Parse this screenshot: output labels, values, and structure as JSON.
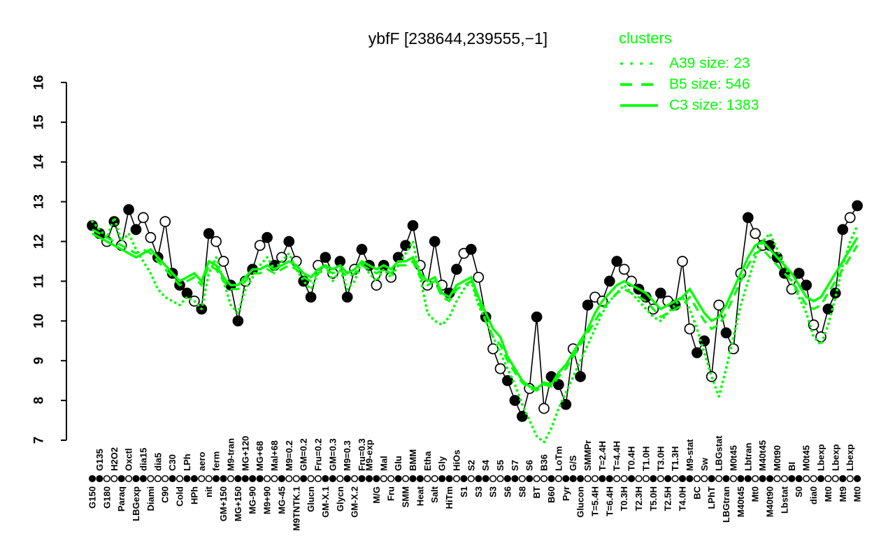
{
  "chart_data": {
    "type": "line",
    "title": "ybfF [238644,239555,−1]",
    "xlabel": "",
    "ylabel": "",
    "ylim": [
      7,
      16
    ],
    "yticks": [
      7,
      8,
      9,
      10,
      11,
      12,
      13,
      14,
      15,
      16
    ],
    "grid": false,
    "colors": {
      "cluster": "#00FF00",
      "series_line": "#000000",
      "open_fill": "#ffffff",
      "text": "#000000"
    },
    "legend": {
      "title": "clusters",
      "position": "top-right",
      "entries": [
        {
          "label": "A39 size: 23",
          "style": "dotted"
        },
        {
          "label": "B5 size: 546",
          "style": "dashed"
        },
        {
          "label": "C3 size: 1383",
          "style": "solid"
        }
      ]
    },
    "conditions": [
      {
        "l": "G150",
        "p": "b"
      },
      {
        "l": "G135",
        "p": "t"
      },
      {
        "l": "G180",
        "p": "b"
      },
      {
        "l": "H2O2",
        "p": "t"
      },
      {
        "l": "Paraq",
        "p": "b"
      },
      {
        "l": "Oxctl",
        "p": "t"
      },
      {
        "l": "LBGexp",
        "p": "b"
      },
      {
        "l": "dia15",
        "p": "t"
      },
      {
        "l": "Diami",
        "p": "b"
      },
      {
        "l": "dia5",
        "p": "t"
      },
      {
        "l": "C90",
        "p": "b"
      },
      {
        "l": "C30",
        "p": "t"
      },
      {
        "l": "Cold",
        "p": "b"
      },
      {
        "l": "LPh",
        "p": "t"
      },
      {
        "l": "HPh",
        "p": "b"
      },
      {
        "l": "aero",
        "p": "t"
      },
      {
        "l": "nit",
        "p": "b"
      },
      {
        "l": "ferm",
        "p": "t"
      },
      {
        "l": "GM+150",
        "p": "b"
      },
      {
        "l": "M9-tran",
        "p": "t"
      },
      {
        "l": "MG+150",
        "p": "b"
      },
      {
        "l": "MG+120",
        "p": "t"
      },
      {
        "l": "MG-90",
        "p": "b"
      },
      {
        "l": "MG+68",
        "p": "t"
      },
      {
        "l": "M9+90",
        "p": "b"
      },
      {
        "l": "Mal+68",
        "p": "t"
      },
      {
        "l": "MG-45",
        "p": "b"
      },
      {
        "l": "M9=0.2",
        "p": "t"
      },
      {
        "l": "M9TNTK.1",
        "p": "b"
      },
      {
        "l": "GM=0.2",
        "p": "t"
      },
      {
        "l": "Glucn",
        "p": "b"
      },
      {
        "l": "Fru=0.2",
        "p": "t"
      },
      {
        "l": "GM-X.1",
        "p": "b"
      },
      {
        "l": "GM=0.3",
        "p": "t"
      },
      {
        "l": "Glycn",
        "p": "b"
      },
      {
        "l": "M9=0.3",
        "p": "t"
      },
      {
        "l": "GM-X.2",
        "p": "b"
      },
      {
        "l": "Fru=0.3",
        "p": "t"
      },
      {
        "l": "M9-exp",
        "p": "t"
      },
      {
        "l": "M/G",
        "p": "b"
      },
      {
        "l": "Mal",
        "p": "t"
      },
      {
        "l": "Fru",
        "p": "b"
      },
      {
        "l": "Glu",
        "p": "t"
      },
      {
        "l": "SMM",
        "p": "b"
      },
      {
        "l": "BMM",
        "p": "t"
      },
      {
        "l": "Heat",
        "p": "b"
      },
      {
        "l": "Etha",
        "p": "t"
      },
      {
        "l": "Salt",
        "p": "b"
      },
      {
        "l": "Gly",
        "p": "t"
      },
      {
        "l": "HiTm",
        "p": "b"
      },
      {
        "l": "HiOs",
        "p": "t"
      },
      {
        "l": "S1",
        "p": "b"
      },
      {
        "l": "S2",
        "p": "t"
      },
      {
        "l": "S3",
        "p": "b"
      },
      {
        "l": "S4",
        "p": "t"
      },
      {
        "l": "S3",
        "p": "b"
      },
      {
        "l": "S5",
        "p": "t"
      },
      {
        "l": "S6",
        "p": "b"
      },
      {
        "l": "S7",
        "p": "t"
      },
      {
        "l": "S8",
        "p": "b"
      },
      {
        "l": "S6",
        "p": "t"
      },
      {
        "l": "BT",
        "p": "b"
      },
      {
        "l": "B36",
        "p": "t"
      },
      {
        "l": "B60",
        "p": "b"
      },
      {
        "l": "LoTm",
        "p": "t"
      },
      {
        "l": "Pyr",
        "p": "b"
      },
      {
        "l": "G/S",
        "p": "t"
      },
      {
        "l": "Glucon",
        "p": "b"
      },
      {
        "l": "SMMPr",
        "p": "t"
      },
      {
        "l": "T=5.4H",
        "p": "b"
      },
      {
        "l": "T=2.4H",
        "p": "t"
      },
      {
        "l": "T=6.4H",
        "p": "b"
      },
      {
        "l": "T=4.4H",
        "p": "t"
      },
      {
        "l": "T0.3H",
        "p": "b"
      },
      {
        "l": "T0.4H",
        "p": "t"
      },
      {
        "l": "T2.3H",
        "p": "b"
      },
      {
        "l": "T1.0H",
        "p": "t"
      },
      {
        "l": "T5.0H",
        "p": "b"
      },
      {
        "l": "T3.0H",
        "p": "t"
      },
      {
        "l": "T2.5H",
        "p": "b"
      },
      {
        "l": "T1.3H",
        "p": "t"
      },
      {
        "l": "T4.0H",
        "p": "b"
      },
      {
        "l": "M9-stat",
        "p": "t"
      },
      {
        "l": "BC",
        "p": "b"
      },
      {
        "l": "Sw",
        "p": "t"
      },
      {
        "l": "LPhT",
        "p": "b"
      },
      {
        "l": "LBGstat",
        "p": "t"
      },
      {
        "l": "LBGtran",
        "p": "b"
      },
      {
        "l": "M0t45",
        "p": "t"
      },
      {
        "l": "M40t45",
        "p": "b"
      },
      {
        "l": "Lbtran",
        "p": "t"
      },
      {
        "l": "Mt0",
        "p": "b"
      },
      {
        "l": "M40t45",
        "p": "t"
      },
      {
        "l": "M40t90",
        "p": "b"
      },
      {
        "l": "M0t90",
        "p": "t"
      },
      {
        "l": "Lbstat",
        "p": "b"
      },
      {
        "l": "BI",
        "p": "t"
      },
      {
        "l": "S0",
        "p": "b"
      },
      {
        "l": "M0t45",
        "p": "t"
      },
      {
        "l": "dia0",
        "p": "b"
      },
      {
        "l": "Lbexp",
        "p": "t"
      },
      {
        "l": "Mt0",
        "p": "b"
      },
      {
        "l": "Lbexp",
        "p": "t"
      },
      {
        "l": "Mt9",
        "p": "b"
      },
      {
        "l": "Lbexp",
        "p": "t"
      },
      {
        "l": "Mt0",
        "p": "b"
      }
    ],
    "gene_points": {
      "values": [
        12.4,
        12.2,
        12.0,
        12.5,
        11.9,
        12.8,
        12.3,
        12.6,
        12.1,
        11.6,
        12.5,
        11.2,
        10.9,
        10.7,
        10.5,
        10.3,
        12.2,
        12.0,
        11.5,
        10.9,
        10.0,
        11.0,
        11.3,
        11.9,
        12.1,
        11.4,
        11.6,
        12.0,
        11.5,
        11.0,
        10.6,
        11.4,
        11.6,
        11.2,
        11.5,
        10.6,
        11.3,
        11.8,
        11.4,
        10.9,
        11.4,
        11.1,
        11.6,
        11.9,
        12.4,
        11.4,
        10.9,
        12.0,
        10.9,
        10.7,
        11.3,
        11.7,
        11.8,
        11.1,
        10.1,
        9.3,
        8.8,
        8.5,
        8.0,
        7.6,
        8.3,
        10.1,
        7.8,
        8.6,
        8.4,
        7.9,
        9.3,
        8.6,
        10.4,
        10.6,
        10.5,
        11.0,
        11.5,
        11.3,
        11.0,
        10.8,
        10.6,
        10.3,
        10.7,
        10.5,
        10.4,
        11.5,
        9.8,
        9.2,
        9.5,
        8.6,
        10.4,
        9.7,
        9.3,
        11.2,
        12.6,
        12.2,
        11.9,
        11.9,
        11.6,
        11.2,
        10.8,
        11.2,
        10.9,
        9.9,
        9.6,
        10.3,
        10.7,
        12.3,
        12.6,
        12.9
      ],
      "fills": "ffofoffoofofffoffooffofoffofoffofoffoffofofffoofoffofofoofffofofffoffooffooffofofooffoofoofoofffoffoofffof"
    },
    "axis_markers": "ffoofoffooofoffooffoffffoofoofooffofofffoofoffooffofoffooffofoofofffooffoofoofofoffoofofoffoffooffoofoofof",
    "clusters": {
      "A39": {
        "style": "dotted",
        "size": 23,
        "values": [
          12.5,
          12.3,
          12.1,
          12.6,
          12.0,
          12.2,
          11.8,
          11.5,
          11.2,
          10.8,
          10.6,
          10.5,
          10.4,
          10.6,
          10.5,
          10.3,
          11.2,
          11.6,
          11.0,
          10.4,
          10.2,
          10.8,
          11.1,
          11.4,
          11.6,
          11.3,
          11.5,
          11.7,
          11.3,
          11.0,
          10.8,
          11.2,
          11.4,
          11.0,
          11.3,
          10.8,
          11.0,
          11.5,
          11.2,
          11.0,
          11.3,
          11.1,
          11.4,
          11.7,
          12.0,
          11.1,
          10.2,
          10.0,
          9.9,
          10.1,
          10.5,
          10.8,
          11.0,
          10.4,
          10.0,
          9.6,
          9.2,
          8.8,
          8.4,
          7.9,
          7.5,
          7.1,
          6.95,
          7.3,
          7.8,
          8.2,
          8.6,
          9.0,
          9.4,
          9.8,
          10.2,
          10.5,
          10.7,
          10.9,
          10.7,
          10.5,
          10.3,
          10.1,
          10.0,
          10.2,
          10.4,
          10.6,
          10.3,
          9.8,
          9.2,
          8.6,
          8.1,
          8.8,
          9.6,
          10.4,
          11.0,
          11.6,
          12.0,
          12.2,
          11.8,
          11.4,
          11.0,
          10.6,
          10.2,
          9.6,
          9.4,
          9.9,
          10.6,
          11.4,
          12.0,
          12.4
        ]
      },
      "B5": {
        "style": "dashed",
        "size": 546,
        "values": [
          12.3,
          12.2,
          12.1,
          12.0,
          11.9,
          11.8,
          11.7,
          11.8,
          11.7,
          11.5,
          11.3,
          11.1,
          10.9,
          11.0,
          11.1,
          10.9,
          11.4,
          11.3,
          11.0,
          10.8,
          10.8,
          11.0,
          11.2,
          11.2,
          11.3,
          11.2,
          11.3,
          11.4,
          11.3,
          11.1,
          11.0,
          11.2,
          11.3,
          11.2,
          11.3,
          11.1,
          11.2,
          11.4,
          11.3,
          11.2,
          11.3,
          11.2,
          11.4,
          11.4,
          11.5,
          11.1,
          10.9,
          11.0,
          10.6,
          10.5,
          10.8,
          10.9,
          11.0,
          10.5,
          10.0,
          9.6,
          9.4,
          9.0,
          8.7,
          8.45,
          8.3,
          8.25,
          8.4,
          8.35,
          8.6,
          8.8,
          9.1,
          9.4,
          9.7,
          10.0,
          10.3,
          10.5,
          10.7,
          10.8,
          10.7,
          10.6,
          10.5,
          10.3,
          10.1,
          10.2,
          10.3,
          10.4,
          10.6,
          10.3,
          10.0,
          9.8,
          9.9,
          10.2,
          10.6,
          11.0,
          11.4,
          11.7,
          11.8,
          11.6,
          11.4,
          11.2,
          11.0,
          10.7,
          10.4,
          10.3,
          10.4,
          10.7,
          11.0,
          11.3,
          11.6,
          11.9
        ]
      },
      "C3": {
        "style": "solid",
        "size": 1383,
        "values": [
          12.2,
          12.1,
          12.0,
          11.9,
          11.8,
          11.7,
          11.6,
          11.7,
          11.8,
          11.6,
          11.4,
          11.2,
          11.0,
          11.1,
          11.2,
          11.0,
          11.5,
          11.4,
          11.1,
          10.9,
          10.9,
          11.1,
          11.3,
          11.3,
          11.4,
          11.3,
          11.4,
          11.5,
          11.4,
          11.2,
          11.1,
          11.3,
          11.4,
          11.3,
          11.4,
          11.2,
          11.3,
          11.5,
          11.4,
          11.3,
          11.4,
          11.3,
          11.5,
          11.5,
          11.6,
          11.2,
          11.0,
          11.1,
          10.7,
          10.6,
          10.9,
          11.0,
          11.1,
          10.6,
          10.2,
          9.8,
          9.6,
          9.1,
          8.8,
          8.5,
          8.35,
          8.3,
          8.45,
          8.4,
          8.7,
          8.9,
          9.2,
          9.5,
          9.8,
          10.2,
          10.5,
          10.7,
          10.9,
          11.0,
          10.9,
          10.8,
          10.7,
          10.5,
          10.3,
          10.4,
          10.5,
          10.6,
          10.8,
          10.5,
          10.2,
          10.0,
          10.1,
          10.4,
          10.8,
          11.2,
          11.6,
          11.9,
          12.0,
          11.8,
          11.6,
          11.4,
          11.2,
          10.9,
          10.6,
          10.5,
          10.6,
          10.9,
          11.2,
          11.5,
          11.8,
          12.1
        ]
      }
    }
  }
}
